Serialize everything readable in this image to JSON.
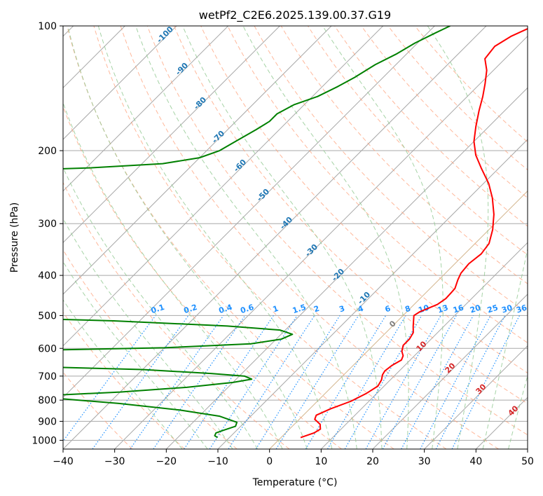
{
  "chart_data": {
    "type": "line",
    "subtype": "skew-t log-p diagram",
    "title": "wetPf2_C2E6.2025.139.00.37.G19",
    "xlabel": "Temperature (°C)",
    "ylabel": "Pressure (hPa)",
    "xlim": [
      -40,
      50
    ],
    "ylim": [
      1050,
      100
    ],
    "y_scale": "log",
    "x_ticks": [
      "−40",
      "−30",
      "−20",
      "−10",
      "0",
      "10",
      "20",
      "30",
      "40",
      "50"
    ],
    "y_ticks": [
      {
        "p": 100,
        "label": "100"
      },
      {
        "p": 200,
        "label": "200"
      },
      {
        "p": 300,
        "label": "300"
      },
      {
        "p": 400,
        "label": "400"
      },
      {
        "p": 500,
        "label": "500"
      },
      {
        "p": 600,
        "label": "600"
      },
      {
        "p": 700,
        "label": "700"
      },
      {
        "p": 800,
        "label": "800"
      },
      {
        "p": 900,
        "label": "900"
      },
      {
        "p": 1000,
        "label": "1000"
      }
    ],
    "grid": true,
    "dry_adiabat_labels": [
      "-100",
      "-90",
      "-80",
      "-70",
      "-60",
      "-50",
      "-40",
      "-30",
      "-20",
      "-10"
    ],
    "mixing_ratio_labels": [
      "0.1",
      "0.2",
      "0.4",
      "0.6",
      "1",
      "1.5",
      "2",
      "3",
      "4",
      "6",
      "8",
      "10",
      "13",
      "16",
      "20",
      "25",
      "30",
      "36"
    ],
    "moist_adiabat_labels": [
      "0",
      "10",
      "20",
      "30",
      "40"
    ],
    "colors": {
      "temperature": "#ff0000",
      "dewpoint": "#008000",
      "isotherm": "#a8a8a8",
      "dry_adiabat": "#ffa07a",
      "moist_adiabat": "#90c890",
      "mixing_ratio": "#1e90ff",
      "dry_adiabat_label": "#1f77b4",
      "moist_adiabat_label": "#d62728",
      "zero_line": "#d2b48c"
    },
    "series": [
      {
        "key": "temperature",
        "points": [
          [
            3.8,
            985
          ],
          [
            5.5,
            960
          ],
          [
            6.0,
            940
          ],
          [
            5.0,
            915
          ],
          [
            3.0,
            890
          ],
          [
            2.5,
            870
          ],
          [
            4.0,
            840
          ],
          [
            6.5,
            805
          ],
          [
            8.0,
            770
          ],
          [
            8.8,
            740
          ],
          [
            8.3,
            715
          ],
          [
            7.5,
            695
          ],
          [
            7.2,
            680
          ],
          [
            7.5,
            660
          ],
          [
            8.3,
            640
          ],
          [
            7.8,
            625
          ],
          [
            6.7,
            610
          ],
          [
            5.8,
            590
          ],
          [
            5.8,
            570
          ],
          [
            5.3,
            550
          ],
          [
            4.0,
            530
          ],
          [
            2.1,
            500
          ],
          [
            2.5,
            490
          ],
          [
            4.5,
            470
          ],
          [
            5.0,
            455
          ],
          [
            4.9,
            440
          ],
          [
            4.8,
            430
          ],
          [
            3.7,
            410
          ],
          [
            3.0,
            395
          ],
          [
            2.7,
            375
          ],
          [
            3.2,
            355
          ],
          [
            2.7,
            335
          ],
          [
            0.7,
            310
          ],
          [
            -2.0,
            285
          ],
          [
            -5.5,
            260
          ],
          [
            -9.0,
            240
          ],
          [
            -13.5,
            220
          ],
          [
            -17.0,
            205
          ],
          [
            -20.0,
            190
          ],
          [
            -22.5,
            175
          ],
          [
            -25.0,
            160
          ],
          [
            -27.0,
            148
          ],
          [
            -29.0,
            138
          ],
          [
            -31.3,
            128
          ],
          [
            -33.9,
            120
          ],
          [
            -34.4,
            112
          ],
          [
            -33.2,
            106
          ],
          [
            -30.8,
            100
          ]
        ]
      },
      {
        "key": "dewpoint",
        "points": [
          [
            -12.3,
            985
          ],
          [
            -13.2,
            975
          ],
          [
            -13.5,
            960
          ],
          [
            -12.5,
            945
          ],
          [
            -11.0,
            925
          ],
          [
            -11.5,
            905
          ],
          [
            -16.0,
            875
          ],
          [
            -25.0,
            845
          ],
          [
            -38.0,
            815
          ],
          [
            -49.5,
            795
          ],
          [
            -55.0,
            785
          ],
          [
            -52.0,
            778
          ],
          [
            -40.0,
            765
          ],
          [
            -28.0,
            745
          ],
          [
            -20.0,
            725
          ],
          [
            -17.0,
            712
          ],
          [
            -19.0,
            700
          ],
          [
            -26.0,
            690
          ],
          [
            -40.0,
            675
          ],
          [
            -70.0,
            660
          ],
          [
            -95.0,
            656
          ],
          [
            -85.0,
            610
          ],
          [
            -60.0,
            605
          ],
          [
            -40.0,
            598
          ],
          [
            -24.0,
            585
          ],
          [
            -19.0,
            570
          ],
          [
            -17.8,
            555
          ],
          [
            -21.0,
            542
          ],
          [
            -32.0,
            530
          ],
          [
            -55.0,
            515
          ],
          [
            -80.0,
            505
          ],
          [
            -90.0,
            480
          ],
          [
            -100.0,
            465
          ],
          [
            -110.0,
            455
          ],
          [
            -130.0,
            440
          ],
          [
            -140.0,
            430
          ]
        ]
      },
      {
        "key": "dewpoint_upper",
        "points": [
          [
            -130.0,
            330
          ],
          [
            -125.0,
            300
          ],
          [
            -118.0,
            270
          ],
          [
            -112.0,
            250
          ],
          [
            -107.0,
            230
          ],
          [
            -103.0,
            223
          ],
          [
            -89.0,
            220
          ],
          [
            -76.0,
            215
          ],
          [
            -70.0,
            208
          ],
          [
            -67.5,
            200
          ],
          [
            -66.2,
            190
          ],
          [
            -64.5,
            178
          ],
          [
            -63.5,
            170
          ],
          [
            -63.5,
            163
          ],
          [
            -62.0,
            155
          ],
          [
            -59.0,
            148
          ],
          [
            -57.0,
            140
          ],
          [
            -55.5,
            133
          ],
          [
            -54.0,
            124
          ],
          [
            -52.0,
            117
          ],
          [
            -50.5,
            110
          ],
          [
            -48.5,
            104
          ],
          [
            -47.0,
            100
          ]
        ]
      }
    ]
  }
}
